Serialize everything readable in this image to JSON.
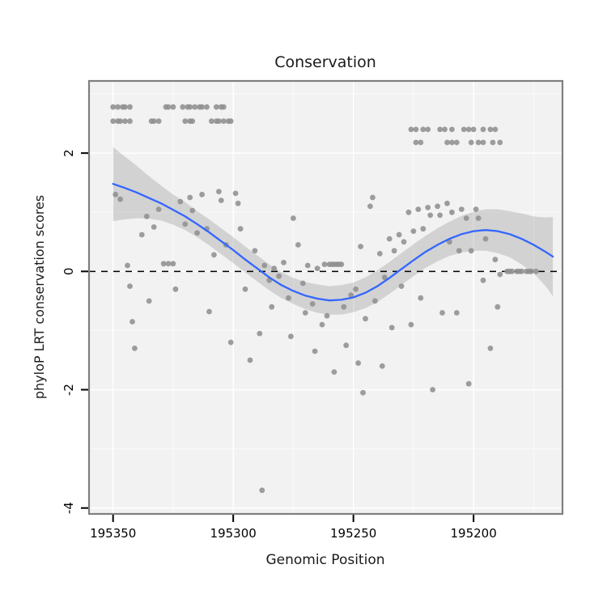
{
  "chart_data": {
    "type": "scatter",
    "title": "Conservation",
    "xlabel": "Genomic Position",
    "ylabel": "phyloP LRT conservation scores",
    "x_axis_reversed": true,
    "x_range": [
      195360,
      195163
    ],
    "y_range": [
      -4.1,
      3.22
    ],
    "x_ticks": {
      "values": [
        195350,
        195300,
        195250,
        195200
      ],
      "labels": [
        "195350",
        "195300",
        "195250",
        "195200"
      ]
    },
    "y_ticks": {
      "values": [
        -4,
        -2,
        0,
        2
      ],
      "labels": [
        "-4",
        "-2",
        "0",
        "2"
      ]
    },
    "x_minor": [
      195325,
      195275,
      195225,
      195175
    ],
    "y_minor": [
      3,
      1,
      -1,
      -3
    ],
    "grid": true,
    "legend": "none",
    "reference_line": {
      "y": 0,
      "style": "dashed",
      "color": "#000000"
    },
    "colors": {
      "point": "#8f8f8f",
      "smooth_line": "#3366FF",
      "band": "rgba(130,130,130,0.28)",
      "panel_bg": "#f2f2f2",
      "grid_major": "#ffffff",
      "grid_minor": "#fafafa",
      "panel_border": "#7f7f7f",
      "tick": "#000000"
    },
    "points": [
      [
        195350,
        2.78
      ],
      [
        195348,
        2.78
      ],
      [
        195346,
        2.78
      ],
      [
        195345,
        2.78
      ],
      [
        195343,
        2.78
      ],
      [
        195328,
        2.78
      ],
      [
        195327,
        2.78
      ],
      [
        195325,
        2.78
      ],
      [
        195321,
        2.78
      ],
      [
        195319,
        2.78
      ],
      [
        195318,
        2.78
      ],
      [
        195316,
        2.78
      ],
      [
        195314,
        2.78
      ],
      [
        195313,
        2.78
      ],
      [
        195311,
        2.78
      ],
      [
        195307,
        2.78
      ],
      [
        195305,
        2.78
      ],
      [
        195304,
        2.78
      ],
      [
        195350,
        2.54
      ],
      [
        195348,
        2.54
      ],
      [
        195347,
        2.54
      ],
      [
        195345,
        2.54
      ],
      [
        195343,
        2.54
      ],
      [
        195334,
        2.54
      ],
      [
        195333,
        2.54
      ],
      [
        195331,
        2.54
      ],
      [
        195320,
        2.54
      ],
      [
        195318,
        2.54
      ],
      [
        195317,
        2.54
      ],
      [
        195309,
        2.54
      ],
      [
        195307,
        2.54
      ],
      [
        195306,
        2.54
      ],
      [
        195304,
        2.54
      ],
      [
        195302,
        2.54
      ],
      [
        195301,
        2.54
      ],
      [
        195226,
        2.4
      ],
      [
        195224,
        2.4
      ],
      [
        195221,
        2.4
      ],
      [
        195219,
        2.4
      ],
      [
        195214,
        2.4
      ],
      [
        195212,
        2.4
      ],
      [
        195209,
        2.4
      ],
      [
        195204,
        2.4
      ],
      [
        195202,
        2.4
      ],
      [
        195200,
        2.4
      ],
      [
        195196,
        2.4
      ],
      [
        195193,
        2.4
      ],
      [
        195191,
        2.4
      ],
      [
        195224,
        2.18
      ],
      [
        195222,
        2.18
      ],
      [
        195211,
        2.18
      ],
      [
        195209,
        2.18
      ],
      [
        195207,
        2.18
      ],
      [
        195201,
        2.18
      ],
      [
        195198,
        2.18
      ],
      [
        195196,
        2.18
      ],
      [
        195192,
        2.18
      ],
      [
        195189,
        2.18
      ],
      [
        195349,
        1.3
      ],
      [
        195347,
        1.22
      ],
      [
        195344,
        0.1
      ],
      [
        195343,
        -0.25
      ],
      [
        195342,
        -0.85
      ],
      [
        195341,
        -1.3
      ],
      [
        195338,
        0.62
      ],
      [
        195336,
        0.93
      ],
      [
        195335,
        -0.5
      ],
      [
        195333,
        0.75
      ],
      [
        195331,
        1.05
      ],
      [
        195329,
        0.13
      ],
      [
        195327,
        0.13
      ],
      [
        195325,
        0.13
      ],
      [
        195324,
        -0.3
      ],
      [
        195322,
        1.18
      ],
      [
        195320,
        0.8
      ],
      [
        195318,
        1.25
      ],
      [
        195317,
        1.03
      ],
      [
        195315,
        0.65
      ],
      [
        195313,
        1.3
      ],
      [
        195311,
        0.72
      ],
      [
        195310,
        -0.68
      ],
      [
        195308,
        0.28
      ],
      [
        195306,
        1.35
      ],
      [
        195305,
        1.2
      ],
      [
        195303,
        0.45
      ],
      [
        195301,
        -1.2
      ],
      [
        195299,
        1.32
      ],
      [
        195298,
        1.15
      ],
      [
        195297,
        0.72
      ],
      [
        195295,
        -0.3
      ],
      [
        195293,
        -1.5
      ],
      [
        195291,
        0.35
      ],
      [
        195289,
        -1.05
      ],
      [
        195288,
        -3.7
      ],
      [
        195287,
        0.1
      ],
      [
        195285,
        -0.15
      ],
      [
        195284,
        -0.6
      ],
      [
        195283,
        0.05
      ],
      [
        195281,
        -0.08
      ],
      [
        195279,
        0.15
      ],
      [
        195277,
        -0.45
      ],
      [
        195276,
        -1.1
      ],
      [
        195275,
        0.9
      ],
      [
        195273,
        0.45
      ],
      [
        195271,
        -0.2
      ],
      [
        195270,
        -0.7
      ],
      [
        195269,
        0.1
      ],
      [
        195267,
        -0.55
      ],
      [
        195266,
        -1.35
      ],
      [
        195265,
        0.05
      ],
      [
        195263,
        -0.9
      ],
      [
        195262,
        0.12
      ],
      [
        195261,
        -0.75
      ],
      [
        195260,
        0.12
      ],
      [
        195259,
        0.12
      ],
      [
        195258,
        0.12
      ],
      [
        195258,
        -1.7
      ],
      [
        195257,
        0.12
      ],
      [
        195256,
        0.12
      ],
      [
        195255,
        0.12
      ],
      [
        195254,
        -0.6
      ],
      [
        195253,
        -1.25
      ],
      [
        195251,
        -0.4
      ],
      [
        195249,
        -0.3
      ],
      [
        195248,
        -1.55
      ],
      [
        195247,
        0.42
      ],
      [
        195246,
        -2.05
      ],
      [
        195245,
        -0.8
      ],
      [
        195243,
        1.1
      ],
      [
        195242,
        1.25
      ],
      [
        195241,
        -0.5
      ],
      [
        195239,
        0.3
      ],
      [
        195238,
        -1.6
      ],
      [
        195237,
        -0.1
      ],
      [
        195235,
        0.55
      ],
      [
        195234,
        -0.95
      ],
      [
        195233,
        0.35
      ],
      [
        195231,
        0.62
      ],
      [
        195230,
        -0.25
      ],
      [
        195229,
        0.5
      ],
      [
        195227,
        1.0
      ],
      [
        195226,
        -0.9
      ],
      [
        195225,
        0.68
      ],
      [
        195223,
        1.05
      ],
      [
        195222,
        -0.45
      ],
      [
        195221,
        0.72
      ],
      [
        195219,
        1.08
      ],
      [
        195218,
        0.95
      ],
      [
        195217,
        -2.0
      ],
      [
        195215,
        1.1
      ],
      [
        195214,
        0.95
      ],
      [
        195213,
        -0.7
      ],
      [
        195211,
        1.15
      ],
      [
        195210,
        0.5
      ],
      [
        195209,
        1.0
      ],
      [
        195207,
        -0.7
      ],
      [
        195206,
        0.35
      ],
      [
        195205,
        1.05
      ],
      [
        195203,
        0.9
      ],
      [
        195202,
        -1.9
      ],
      [
        195201,
        0.35
      ],
      [
        195199,
        1.05
      ],
      [
        195198,
        0.9
      ],
      [
        195196,
        -0.15
      ],
      [
        195195,
        0.55
      ],
      [
        195193,
        -1.3
      ],
      [
        195191,
        0.2
      ],
      [
        195190,
        -0.6
      ],
      [
        195189,
        -0.05
      ],
      [
        195186,
        0.0
      ],
      [
        195185,
        0.0
      ],
      [
        195184,
        0.0
      ],
      [
        195182,
        0.0
      ],
      [
        195181,
        0.0
      ],
      [
        195180,
        0.0
      ],
      [
        195178,
        0.0
      ],
      [
        195177,
        0.0
      ],
      [
        195176,
        0.0
      ],
      [
        195174,
        0.0
      ]
    ],
    "smooth": {
      "x": [
        195350,
        195345,
        195340,
        195335,
        195330,
        195325,
        195320,
        195315,
        195310,
        195305,
        195300,
        195295,
        195290,
        195285,
        195280,
        195275,
        195270,
        195265,
        195260,
        195255,
        195250,
        195245,
        195240,
        195235,
        195230,
        195225,
        195220,
        195215,
        195210,
        195205,
        195200,
        195195,
        195190,
        195185,
        195180,
        195175,
        195170,
        195167
      ],
      "y": [
        1.48,
        1.41,
        1.33,
        1.24,
        1.15,
        1.04,
        0.93,
        0.8,
        0.66,
        0.51,
        0.36,
        0.2,
        0.05,
        -0.1,
        -0.23,
        -0.33,
        -0.41,
        -0.46,
        -0.49,
        -0.48,
        -0.44,
        -0.36,
        -0.25,
        -0.11,
        0.04,
        0.19,
        0.33,
        0.45,
        0.55,
        0.63,
        0.68,
        0.7,
        0.68,
        0.63,
        0.55,
        0.45,
        0.33,
        0.25
      ],
      "ymin": [
        0.85,
        0.88,
        0.9,
        0.89,
        0.86,
        0.79,
        0.7,
        0.58,
        0.44,
        0.29,
        0.14,
        -0.02,
        -0.17,
        -0.32,
        -0.45,
        -0.55,
        -0.64,
        -0.7,
        -0.73,
        -0.73,
        -0.69,
        -0.62,
        -0.52,
        -0.38,
        -0.23,
        -0.08,
        0.06,
        0.17,
        0.26,
        0.32,
        0.35,
        0.35,
        0.31,
        0.24,
        0.12,
        -0.03,
        -0.25,
        -0.42
      ],
      "ymax": [
        2.1,
        1.94,
        1.78,
        1.61,
        1.45,
        1.3,
        1.17,
        1.02,
        0.88,
        0.73,
        0.58,
        0.42,
        0.27,
        0.12,
        -0.01,
        -0.11,
        -0.18,
        -0.22,
        -0.25,
        -0.23,
        -0.19,
        -0.1,
        0.02,
        0.16,
        0.31,
        0.46,
        0.6,
        0.73,
        0.84,
        0.94,
        1.01,
        1.05,
        1.05,
        1.02,
        0.98,
        0.93,
        0.91,
        0.92
      ]
    }
  }
}
